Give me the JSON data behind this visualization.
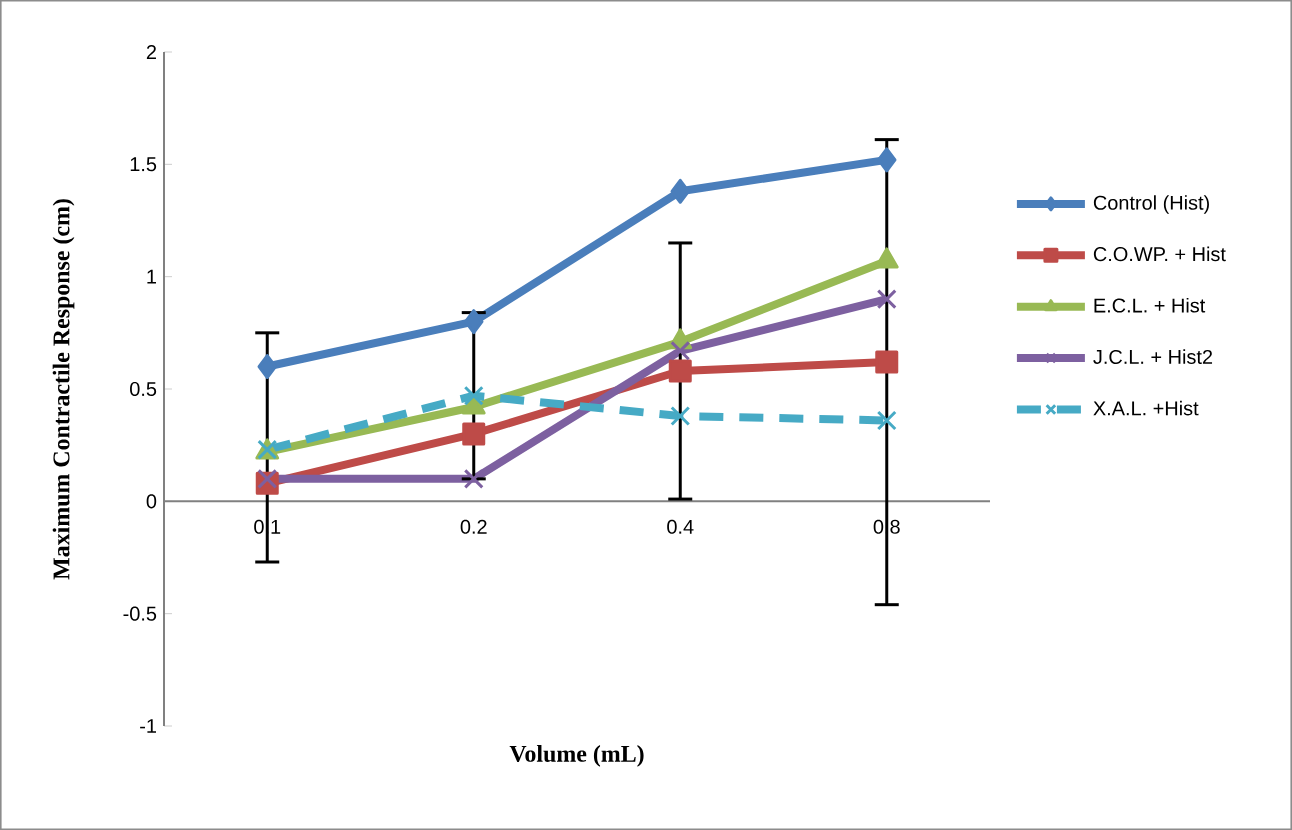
{
  "chart_data": {
    "type": "line",
    "xlabel": "Volume (mL)",
    "ylabel": "Maximum Contractile Response (cm)",
    "categories": [
      "0.1",
      "0.2",
      "0.4",
      "0.8"
    ],
    "ylim": [
      -1,
      2
    ],
    "yticks": [
      -1,
      -0.5,
      0,
      0.5,
      1,
      1.5,
      2
    ],
    "grid": false,
    "legend": "right",
    "series": [
      {
        "name": "Control (Hist)",
        "color": "#4a7ebb",
        "marker": "diamond",
        "line_style": "solid",
        "values": [
          0.6,
          0.8,
          1.38,
          1.52
        ]
      },
      {
        "name": "C.O.WP. + Hist",
        "color": "#be4b48",
        "marker": "square",
        "line_style": "solid",
        "values": [
          0.08,
          0.3,
          0.58,
          0.62
        ],
        "errors": [
          null,
          null,
          0.57,
          null
        ]
      },
      {
        "name": "E.C.L. + Hist",
        "color": "#98b954",
        "marker": "triangle",
        "line_style": "solid",
        "values": [
          0.22,
          0.42,
          0.71,
          1.07
        ]
      },
      {
        "name": "J.C.L. + Hist2",
        "color": "#7d60a0",
        "marker": "cross",
        "line_style": "solid",
        "values": [
          0.1,
          0.1,
          0.67,
          0.9
        ]
      },
      {
        "name": "X.A.L. +Hist",
        "color": "#46aac5",
        "marker": "cross",
        "line_style": "dashed",
        "values": [
          0.23,
          0.47,
          0.38,
          0.36
        ],
        "errors": [
          [
            -0.27,
            0.75
          ],
          0.37,
          null,
          [
            -0.46,
            1.61
          ]
        ]
      }
    ]
  }
}
